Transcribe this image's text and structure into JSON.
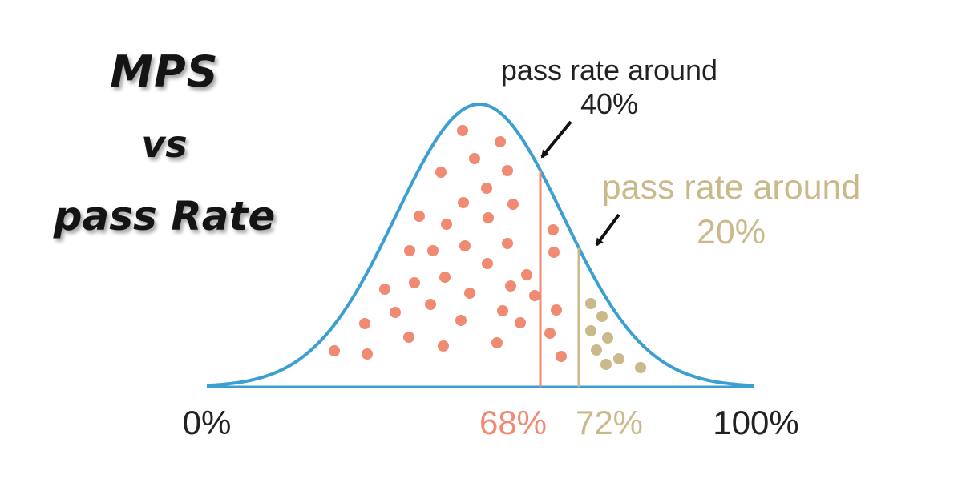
{
  "title": {
    "line1": "MPS",
    "line2": "vs",
    "line3": "pass Rate"
  },
  "colors": {
    "curve": "#3c9fd2",
    "marker_68": "#f08a72",
    "marker_72": "#c9b98b",
    "text": "#222222",
    "dots_left": "#f08a72",
    "dots_right": "#c9b98b"
  },
  "axis": {
    "tick_0": "0%",
    "tick_100": "100%",
    "x_range": [
      0,
      100
    ]
  },
  "markers": [
    {
      "value": 68,
      "label": "68%",
      "annotation_line1": "pass rate around",
      "annotation_line2": "40%"
    },
    {
      "value": 72,
      "label": "72%",
      "annotation_line1": "pass rate around",
      "annotation_line2": "20%"
    }
  ]
}
